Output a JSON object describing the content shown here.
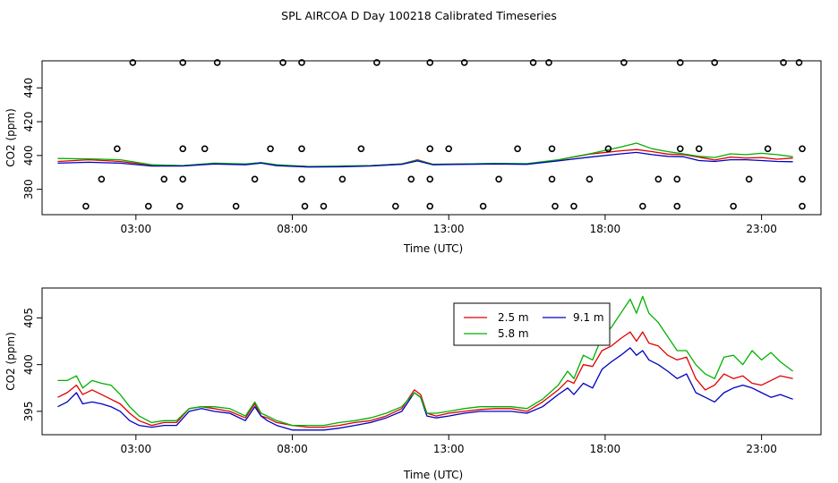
{
  "chart_data": [
    {
      "type": "scatter+line",
      "title": "SPL AIRCOA D  Day 100218  Calibrated Timeseries",
      "xlabel": "Time (UTC)",
      "ylabel": "CO2 (ppm)",
      "xlim": [
        0,
        24.9
      ],
      "ylim": [
        365,
        456
      ],
      "xticks": [
        {
          "value": 3,
          "label": "03:00"
        },
        {
          "value": 8,
          "label": "08:00"
        },
        {
          "value": 13,
          "label": "13:00"
        },
        {
          "value": 18,
          "label": "18:00"
        },
        {
          "value": 23,
          "label": "23:00"
        }
      ],
      "yticks": [
        380,
        400,
        420,
        440
      ],
      "yticks_hidden": [
        360
      ],
      "calibration_points": [
        {
          "x": 1.4,
          "y": 370
        },
        {
          "x": 1.9,
          "y": 386
        },
        {
          "x": 2.4,
          "y": 404
        },
        {
          "x": 2.9,
          "y": 455
        },
        {
          "x": 3.4,
          "y": 370
        },
        {
          "x": 3.9,
          "y": 386
        },
        {
          "x": 4.4,
          "y": 370
        },
        {
          "x": 4.5,
          "y": 386
        },
        {
          "x": 4.5,
          "y": 404
        },
        {
          "x": 4.5,
          "y": 455
        },
        {
          "x": 5.2,
          "y": 404
        },
        {
          "x": 5.6,
          "y": 455
        },
        {
          "x": 6.2,
          "y": 370
        },
        {
          "x": 6.8,
          "y": 386
        },
        {
          "x": 7.3,
          "y": 404
        },
        {
          "x": 7.7,
          "y": 455
        },
        {
          "x": 8.3,
          "y": 455
        },
        {
          "x": 8.3,
          "y": 404
        },
        {
          "x": 8.3,
          "y": 386
        },
        {
          "x": 8.4,
          "y": 370
        },
        {
          "x": 9.0,
          "y": 370
        },
        {
          "x": 9.6,
          "y": 386
        },
        {
          "x": 10.2,
          "y": 404
        },
        {
          "x": 10.7,
          "y": 455
        },
        {
          "x": 11.3,
          "y": 370
        },
        {
          "x": 11.8,
          "y": 386
        },
        {
          "x": 12.4,
          "y": 370
        },
        {
          "x": 12.4,
          "y": 386
        },
        {
          "x": 12.4,
          "y": 404
        },
        {
          "x": 12.4,
          "y": 455
        },
        {
          "x": 13.0,
          "y": 404
        },
        {
          "x": 13.5,
          "y": 455
        },
        {
          "x": 14.1,
          "y": 370
        },
        {
          "x": 14.6,
          "y": 386
        },
        {
          "x": 15.2,
          "y": 404
        },
        {
          "x": 15.7,
          "y": 455
        },
        {
          "x": 16.2,
          "y": 455
        },
        {
          "x": 16.3,
          "y": 404
        },
        {
          "x": 16.3,
          "y": 386
        },
        {
          "x": 16.4,
          "y": 370
        },
        {
          "x": 17.0,
          "y": 370
        },
        {
          "x": 17.5,
          "y": 386
        },
        {
          "x": 18.1,
          "y": 404
        },
        {
          "x": 18.6,
          "y": 455
        },
        {
          "x": 19.2,
          "y": 370
        },
        {
          "x": 19.7,
          "y": 386
        },
        {
          "x": 20.3,
          "y": 370
        },
        {
          "x": 20.3,
          "y": 386
        },
        {
          "x": 20.4,
          "y": 404
        },
        {
          "x": 20.4,
          "y": 455
        },
        {
          "x": 21.0,
          "y": 404
        },
        {
          "x": 21.5,
          "y": 455
        },
        {
          "x": 22.1,
          "y": 370
        },
        {
          "x": 22.6,
          "y": 386
        },
        {
          "x": 23.2,
          "y": 404
        },
        {
          "x": 23.7,
          "y": 455
        },
        {
          "x": 24.2,
          "y": 455
        },
        {
          "x": 24.3,
          "y": 404
        },
        {
          "x": 24.3,
          "y": 386
        },
        {
          "x": 24.3,
          "y": 370
        }
      ],
      "series": [
        {
          "name": "2.5 m",
          "color": "#e00000",
          "x": [
            0.5,
            1.5,
            2.5,
            3.5,
            4.5,
            5.5,
            6.5,
            7.0,
            7.5,
            8.5,
            9.5,
            10.5,
            11.5,
            12.0,
            12.5,
            13.5,
            14.5,
            15.5,
            16.5,
            17.5,
            18.5,
            19.0,
            19.5,
            20.0,
            20.5,
            21.0,
            21.5,
            22.0,
            22.5,
            23.0,
            23.5,
            24.0
          ],
          "y": [
            396.5,
            397.5,
            396.5,
            394.3,
            394.0,
            395.3,
            394.8,
            395.8,
            394.3,
            393.5,
            393.5,
            394.0,
            395.0,
            397.5,
            394.8,
            395.0,
            395.2,
            395.0,
            397.3,
            400.8,
            402.8,
            403.5,
            402.3,
            400.8,
            400.5,
            399.0,
            397.3,
            399.0,
            398.5,
            398.8,
            397.8,
            398.5
          ]
        },
        {
          "name": "5.8 m",
          "color": "#00b000",
          "x": [
            0.5,
            1.5,
            2.5,
            3.5,
            4.5,
            5.5,
            6.5,
            7.0,
            7.5,
            8.5,
            9.5,
            10.5,
            11.5,
            12.0,
            12.5,
            13.5,
            14.5,
            15.5,
            16.5,
            17.5,
            18.5,
            19.0,
            19.5,
            20.0,
            20.5,
            21.0,
            21.5,
            22.0,
            22.5,
            23.0,
            23.5,
            24.0
          ],
          "y": [
            398.2,
            398.0,
            397.5,
            394.5,
            394.0,
            395.5,
            395.0,
            395.8,
            394.5,
            393.5,
            393.8,
            394.0,
            395.0,
            397.2,
            394.8,
            395.0,
            395.3,
            395.2,
            397.5,
            401.0,
            405.0,
            407.3,
            404.0,
            402.3,
            401.0,
            399.5,
            398.8,
            401.0,
            400.5,
            401.3,
            400.5,
            399.3
          ]
        },
        {
          "name": "9.1 m",
          "color": "#0000c0",
          "x": [
            0.5,
            1.5,
            2.5,
            3.5,
            4.5,
            5.5,
            6.5,
            7.0,
            7.5,
            8.5,
            9.5,
            10.5,
            11.5,
            12.0,
            12.5,
            13.5,
            14.5,
            15.5,
            16.5,
            17.5,
            18.5,
            19.0,
            19.5,
            20.0,
            20.5,
            21.0,
            21.5,
            22.0,
            22.5,
            23.0,
            23.5,
            24.0
          ],
          "y": [
            395.5,
            396.0,
            395.5,
            393.8,
            393.8,
            395.0,
            394.5,
            395.5,
            394.0,
            393.2,
            393.3,
            393.8,
            394.8,
            396.8,
            394.5,
            394.8,
            395.0,
            394.8,
            396.8,
            399.0,
            401.0,
            401.8,
            400.5,
            399.5,
            399.3,
            397.0,
            396.5,
            397.5,
            397.5,
            397.0,
            396.5,
            396.3
          ]
        }
      ]
    },
    {
      "type": "line",
      "xlabel": "Time (UTC)",
      "ylabel": "CO2 (ppm)",
      "xlim": [
        0,
        24.9
      ],
      "ylim": [
        392.5,
        408.2
      ],
      "xticks": [
        {
          "value": 3,
          "label": "03:00"
        },
        {
          "value": 8,
          "label": "08:00"
        },
        {
          "value": 13,
          "label": "13:00"
        },
        {
          "value": 18,
          "label": "18:00"
        },
        {
          "value": 23,
          "label": "23:00"
        }
      ],
      "yticks": [
        395,
        400,
        405
      ],
      "legend": {
        "placement": "top-center-right",
        "entries": [
          "2.5 m",
          "9.1 m",
          "5.8 m"
        ]
      },
      "series": [
        {
          "name": "2.5 m",
          "color": "#e00000",
          "x": [
            0.5,
            0.8,
            1.1,
            1.3,
            1.6,
            1.9,
            2.2,
            2.5,
            2.8,
            3.1,
            3.5,
            3.9,
            4.3,
            4.7,
            5.1,
            5.5,
            6.0,
            6.5,
            6.8,
            7.0,
            7.2,
            7.5,
            8.0,
            8.5,
            9.0,
            9.5,
            10.0,
            10.5,
            11.0,
            11.5,
            11.9,
            12.1,
            12.3,
            12.6,
            13.0,
            13.5,
            14.0,
            14.5,
            15.0,
            15.5,
            16.0,
            16.5,
            16.8,
            17.0,
            17.3,
            17.6,
            17.9,
            18.2,
            18.5,
            18.8,
            19.0,
            19.2,
            19.4,
            19.7,
            20.0,
            20.3,
            20.6,
            20.9,
            21.2,
            21.5,
            21.8,
            22.1,
            22.4,
            22.7,
            23.0,
            23.3,
            23.6,
            24.0
          ],
          "y": [
            396.5,
            397.0,
            397.8,
            396.8,
            397.3,
            396.8,
            396.3,
            395.8,
            394.8,
            394.0,
            393.5,
            393.8,
            393.8,
            395.3,
            395.5,
            395.3,
            395.0,
            394.3,
            395.8,
            394.5,
            394.3,
            393.8,
            393.5,
            393.3,
            393.3,
            393.5,
            393.8,
            394.0,
            394.5,
            395.3,
            397.3,
            396.8,
            394.8,
            394.5,
            394.8,
            395.0,
            395.2,
            395.3,
            395.3,
            395.0,
            396.0,
            397.3,
            398.3,
            398.0,
            400.0,
            399.8,
            401.5,
            402.0,
            402.8,
            403.5,
            402.5,
            403.5,
            402.3,
            402.0,
            401.0,
            400.5,
            400.8,
            398.5,
            397.3,
            397.8,
            399.0,
            398.5,
            398.8,
            398.0,
            397.8,
            398.3,
            398.8,
            398.5
          ]
        },
        {
          "name": "9.1 m",
          "color": "#0000c0",
          "x": [
            0.5,
            0.8,
            1.1,
            1.3,
            1.6,
            1.9,
            2.2,
            2.5,
            2.8,
            3.1,
            3.5,
            3.9,
            4.3,
            4.7,
            5.1,
            5.5,
            6.0,
            6.5,
            6.8,
            7.0,
            7.2,
            7.5,
            8.0,
            8.5,
            9.0,
            9.5,
            10.0,
            10.5,
            11.0,
            11.5,
            11.9,
            12.1,
            12.3,
            12.6,
            13.0,
            13.5,
            14.0,
            14.5,
            15.0,
            15.5,
            16.0,
            16.5,
            16.8,
            17.0,
            17.3,
            17.6,
            17.9,
            18.2,
            18.5,
            18.8,
            19.0,
            19.2,
            19.4,
            19.7,
            20.0,
            20.3,
            20.6,
            20.9,
            21.2,
            21.5,
            21.8,
            22.1,
            22.4,
            22.7,
            23.0,
            23.3,
            23.6,
            24.0
          ],
          "y": [
            395.5,
            396.0,
            397.0,
            395.8,
            396.0,
            395.8,
            395.5,
            395.0,
            394.0,
            393.5,
            393.3,
            393.5,
            393.5,
            395.0,
            395.3,
            395.0,
            394.8,
            394.0,
            395.5,
            394.5,
            394.0,
            393.5,
            393.0,
            393.0,
            393.0,
            393.2,
            393.5,
            393.8,
            394.3,
            395.0,
            397.0,
            396.5,
            394.5,
            394.3,
            394.5,
            394.8,
            395.0,
            395.0,
            395.0,
            394.8,
            395.5,
            396.8,
            397.5,
            396.8,
            398.0,
            397.5,
            399.5,
            400.3,
            401.0,
            401.8,
            401.0,
            401.5,
            400.5,
            400.0,
            399.3,
            398.5,
            399.0,
            397.0,
            396.5,
            396.0,
            397.0,
            397.5,
            397.8,
            397.5,
            397.0,
            396.5,
            396.8,
            396.3
          ]
        },
        {
          "name": "5.8 m",
          "color": "#00b000",
          "x": [
            0.5,
            0.8,
            1.1,
            1.3,
            1.6,
            1.9,
            2.2,
            2.5,
            2.8,
            3.1,
            3.5,
            3.9,
            4.3,
            4.7,
            5.1,
            5.5,
            6.0,
            6.5,
            6.8,
            7.0,
            7.2,
            7.5,
            8.0,
            8.5,
            9.0,
            9.5,
            10.0,
            10.5,
            11.0,
            11.5,
            11.9,
            12.1,
            12.3,
            12.6,
            13.0,
            13.5,
            14.0,
            14.5,
            15.0,
            15.5,
            16.0,
            16.5,
            16.8,
            17.0,
            17.3,
            17.6,
            17.9,
            18.2,
            18.5,
            18.8,
            19.0,
            19.2,
            19.4,
            19.7,
            20.0,
            20.3,
            20.6,
            20.9,
            21.2,
            21.5,
            21.8,
            22.1,
            22.4,
            22.7,
            23.0,
            23.3,
            23.6,
            24.0
          ],
          "y": [
            398.3,
            398.3,
            398.8,
            397.5,
            398.3,
            398.0,
            397.8,
            396.8,
            395.5,
            394.5,
            393.8,
            394.0,
            394.0,
            395.3,
            395.5,
            395.5,
            395.3,
            394.5,
            396.0,
            394.8,
            394.5,
            394.0,
            393.5,
            393.5,
            393.5,
            393.8,
            394.0,
            394.3,
            394.8,
            395.5,
            397.0,
            396.5,
            394.8,
            394.8,
            395.0,
            395.3,
            395.5,
            395.5,
            395.5,
            395.3,
            396.3,
            397.8,
            399.3,
            398.5,
            401.0,
            400.5,
            403.0,
            404.0,
            405.5,
            407.0,
            405.5,
            407.3,
            405.5,
            404.5,
            403.0,
            401.5,
            401.5,
            400.0,
            399.0,
            398.5,
            400.8,
            401.0,
            400.0,
            401.5,
            400.5,
            401.3,
            400.3,
            399.3
          ]
        }
      ]
    }
  ]
}
